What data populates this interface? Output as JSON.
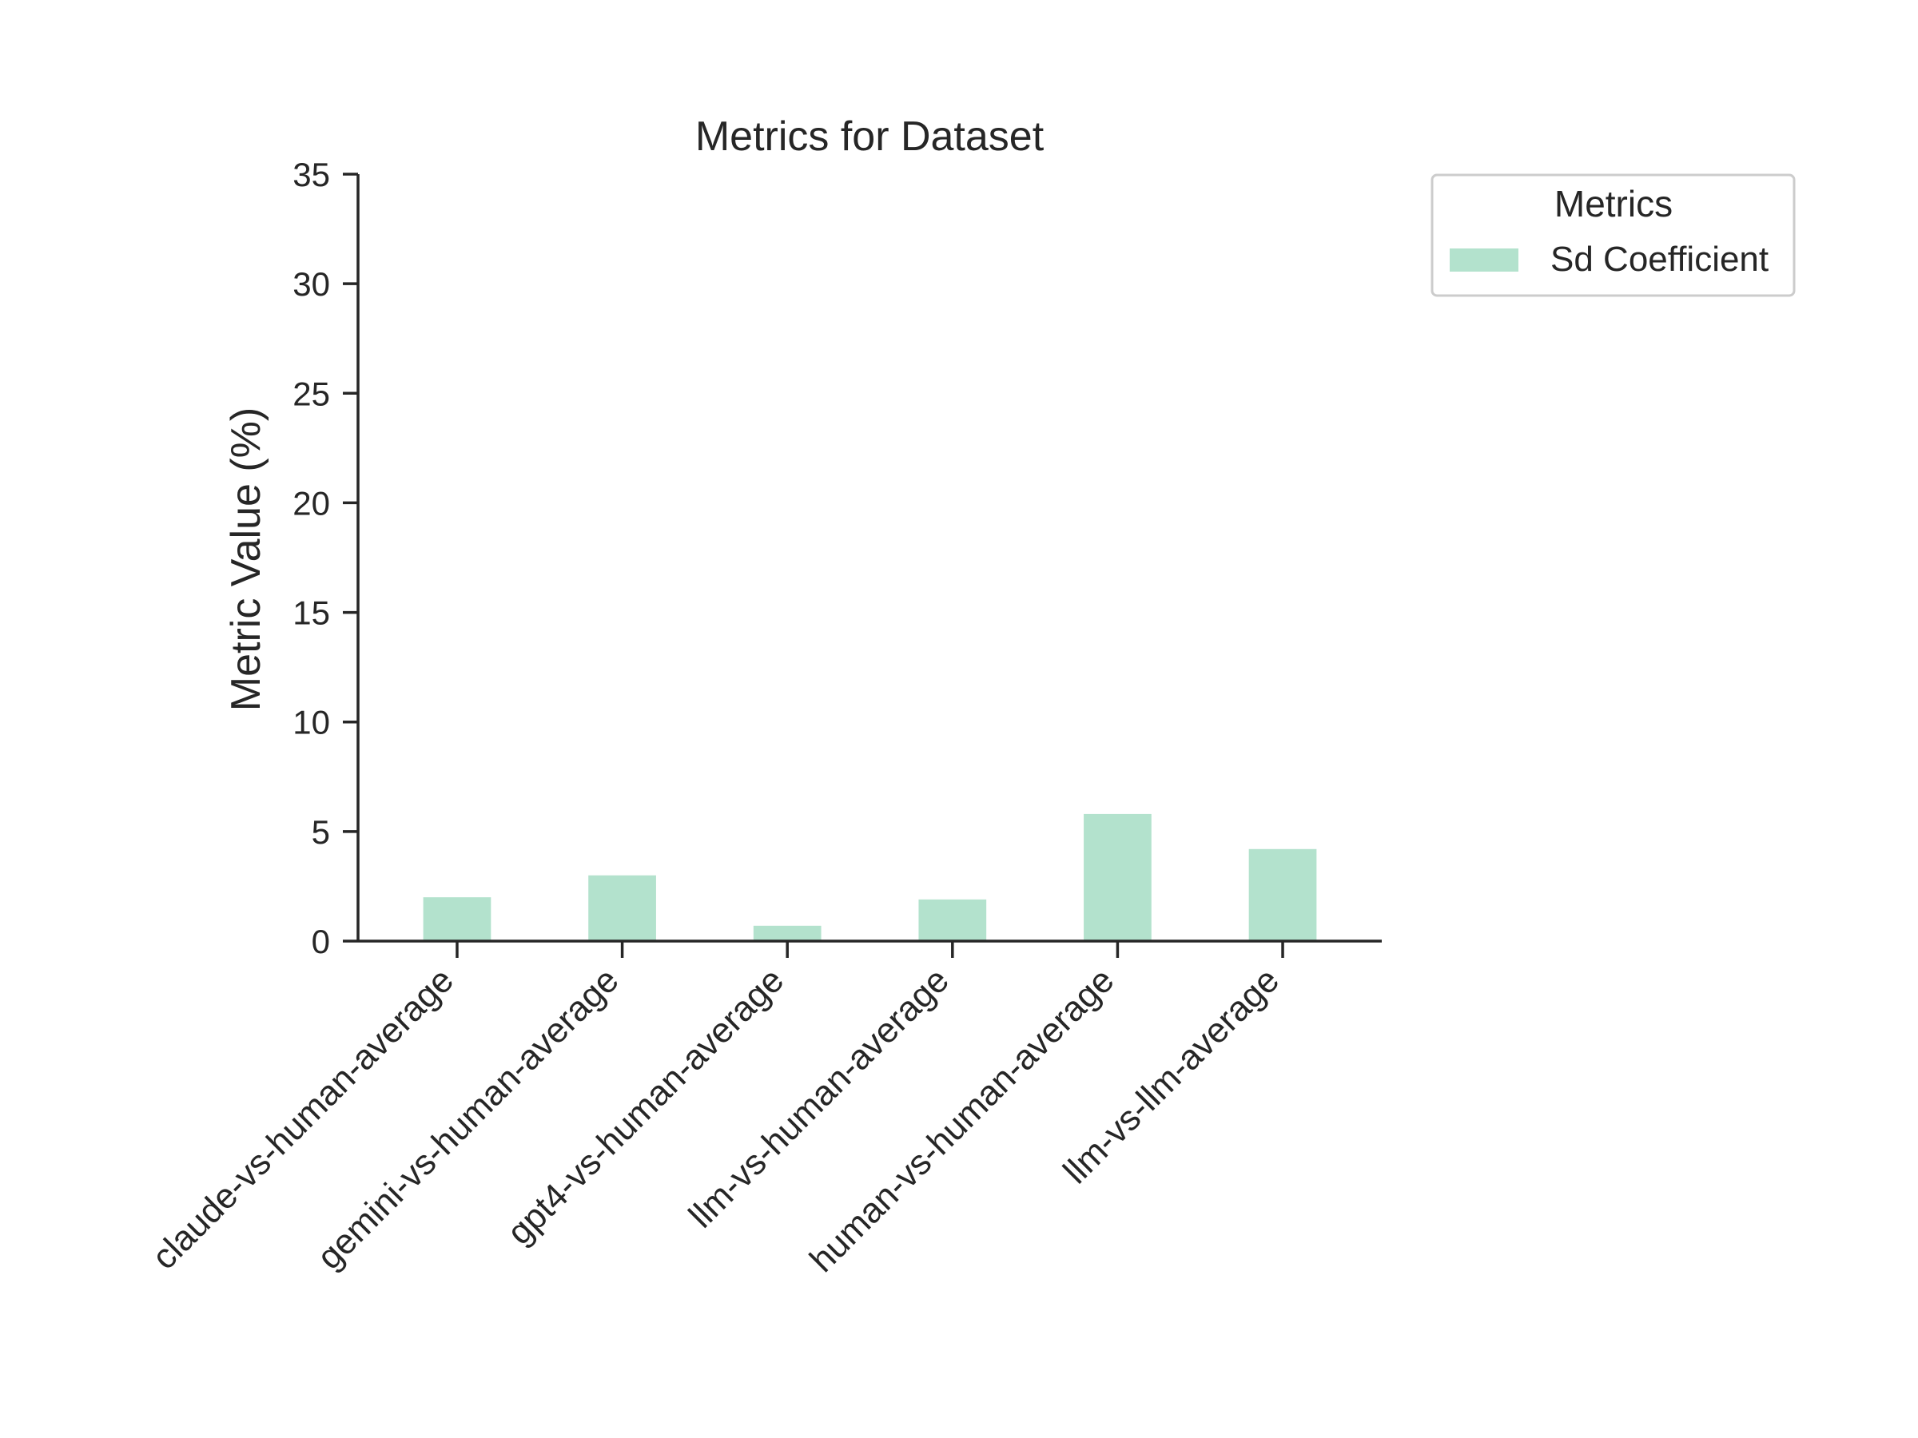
{
  "chart_data": {
    "type": "bar",
    "title": "Metrics for Dataset",
    "xlabel": "",
    "ylabel": "Metric Value (%)",
    "ylim": [
      0,
      35
    ],
    "yticks": [
      0,
      5,
      10,
      15,
      20,
      25,
      30,
      35
    ],
    "categories": [
      "claude-vs-human-average",
      "gemini-vs-human-average",
      "gpt4-vs-human-average",
      "llm-vs-human-average",
      "human-vs-human-average",
      "llm-vs-llm-average"
    ],
    "series": [
      {
        "name": "Sd Coefficient",
        "color": "#b3e2cd",
        "values": [
          2.0,
          3.0,
          0.7,
          1.9,
          5.8,
          4.2
        ]
      }
    ],
    "legend": {
      "title": "Metrics",
      "placement": "upper-right-outside"
    },
    "grid": false
  }
}
